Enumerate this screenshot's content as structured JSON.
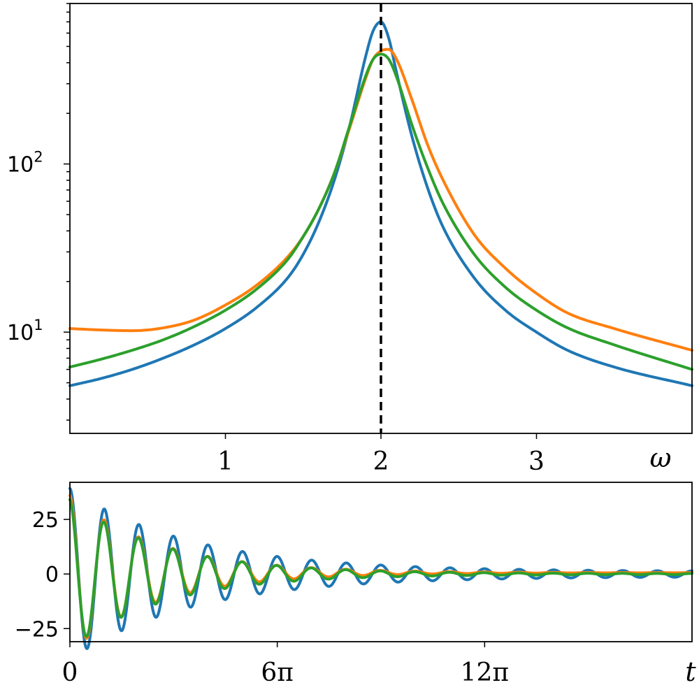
{
  "chart_data": [
    {
      "type": "line",
      "xlabel": "ω",
      "ylabel": "",
      "yscale": "log",
      "xlim": [
        0,
        4
      ],
      "ylim": [
        2.5,
        900
      ],
      "grid": false,
      "x_ticks": [
        {
          "value": 1,
          "label": "1"
        },
        {
          "value": 2,
          "label": "2"
        },
        {
          "value": 3,
          "label": "3"
        }
      ],
      "y_ticks": [
        {
          "value": 10,
          "base": "10",
          "exp": "1"
        },
        {
          "value": 100,
          "base": "10",
          "exp": "2"
        }
      ],
      "reference_line": {
        "x": 2,
        "style": "dashed",
        "color": "#000000"
      },
      "x": [
        0,
        0.2,
        0.4,
        0.6,
        0.8,
        1.0,
        1.2,
        1.4,
        1.5,
        1.6,
        1.7,
        1.8,
        1.9,
        1.95,
        2.0,
        2.05,
        2.1,
        2.2,
        2.3,
        2.4,
        2.6,
        2.8,
        3.0,
        3.2,
        3.5,
        4.0
      ],
      "series": [
        {
          "color": "#1f77b4",
          "values": [
            4.8,
            5.3,
            6.0,
            7.0,
            8.4,
            10.5,
            14,
            21,
            29,
            45,
            80,
            170,
            430,
            620,
            700,
            560,
            350,
            145,
            72,
            42,
            21,
            13.5,
            10,
            7.8,
            6.2,
            4.8
          ]
        },
        {
          "color": "#ff7f0e",
          "values": [
            10.5,
            10.3,
            10.2,
            10.6,
            11.8,
            14.5,
            19,
            28,
            37,
            54,
            88,
            165,
            320,
            420,
            470,
            480,
            420,
            240,
            130,
            80,
            38,
            24,
            17,
            13,
            10.5,
            7.8
          ]
        },
        {
          "color": "#2ca02c",
          "values": [
            6.2,
            6.9,
            7.8,
            9.0,
            10.8,
            13.5,
            18,
            27,
            37,
            54,
            88,
            170,
            330,
            420,
            450,
            420,
            330,
            170,
            95,
            58,
            29,
            18.5,
            13.5,
            10.6,
            8.4,
            6.0
          ]
        }
      ]
    },
    {
      "type": "line",
      "xlabel": "t",
      "ylabel": "",
      "xlim": [
        0,
        56.55
      ],
      "ylim": [
        -31,
        42
      ],
      "grid": false,
      "x_ticks": [
        {
          "value": 0,
          "label": "0"
        },
        {
          "value": 18.85,
          "label": "6π"
        },
        {
          "value": 37.7,
          "label": "12π"
        }
      ],
      "y_ticks": [
        {
          "value": -25,
          "label": "−25"
        },
        {
          "value": 0,
          "label": "0"
        },
        {
          "value": 25,
          "label": "25"
        }
      ],
      "model": "damped oscillation y = a·exp(−t/τ)·cos(ω t + φ) + c, ω = 2",
      "series": [
        {
          "color": "#1f77b4",
          "amplitude": 38,
          "tau": 11,
          "omega": 2.0,
          "phase": 0,
          "floor_amplitude": 1.2,
          "offset": 0
        },
        {
          "color": "#ff7f0e",
          "amplitude": 36,
          "tau": 8,
          "omega": 2.0,
          "phase": 0.05,
          "floor_amplitude": 0.0,
          "offset": 0.6
        },
        {
          "color": "#2ca02c",
          "amplitude": 34,
          "tau": 8.5,
          "omega": 2.0,
          "phase": 0.08,
          "floor_amplitude": 0.2,
          "offset": 0
        }
      ]
    }
  ]
}
